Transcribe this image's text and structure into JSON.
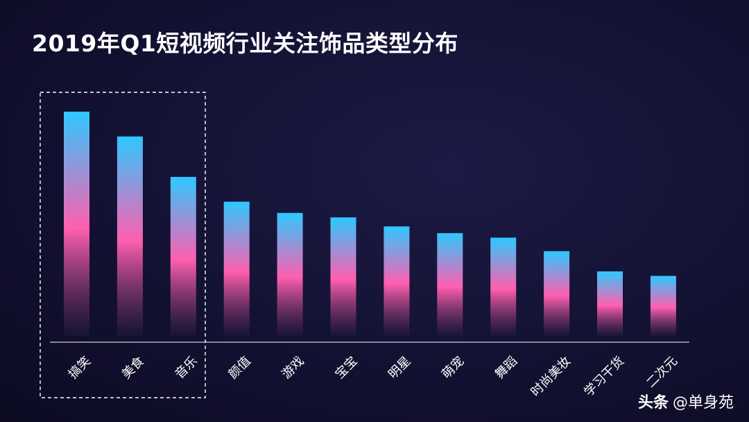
{
  "title": "2019年Q1短视频行业关注饰品类型分布",
  "watermark": {
    "brand": "头条",
    "handle": "@单身苑"
  },
  "colors": {
    "bar_top": "#2ec8ff",
    "bar_mid": "#ff5faf",
    "bar_bottom": "#1a1638",
    "axis": "#ffffff",
    "highlight_box": "#ffffff"
  },
  "chart_data": {
    "type": "bar",
    "categories": [
      "搞笑",
      "美食",
      "音乐",
      "颜值",
      "游戏",
      "宝宝",
      "明星",
      "萌宠",
      "舞蹈",
      "时尚美妆",
      "学习干货",
      "二次元"
    ],
    "values": [
      100,
      89,
      71,
      60,
      55,
      53,
      49,
      46,
      44,
      38,
      29,
      27
    ],
    "ylim": [
      0,
      108
    ],
    "highlighted": [
      "搞笑",
      "美食",
      "音乐"
    ],
    "grid": false,
    "legend": "none"
  }
}
